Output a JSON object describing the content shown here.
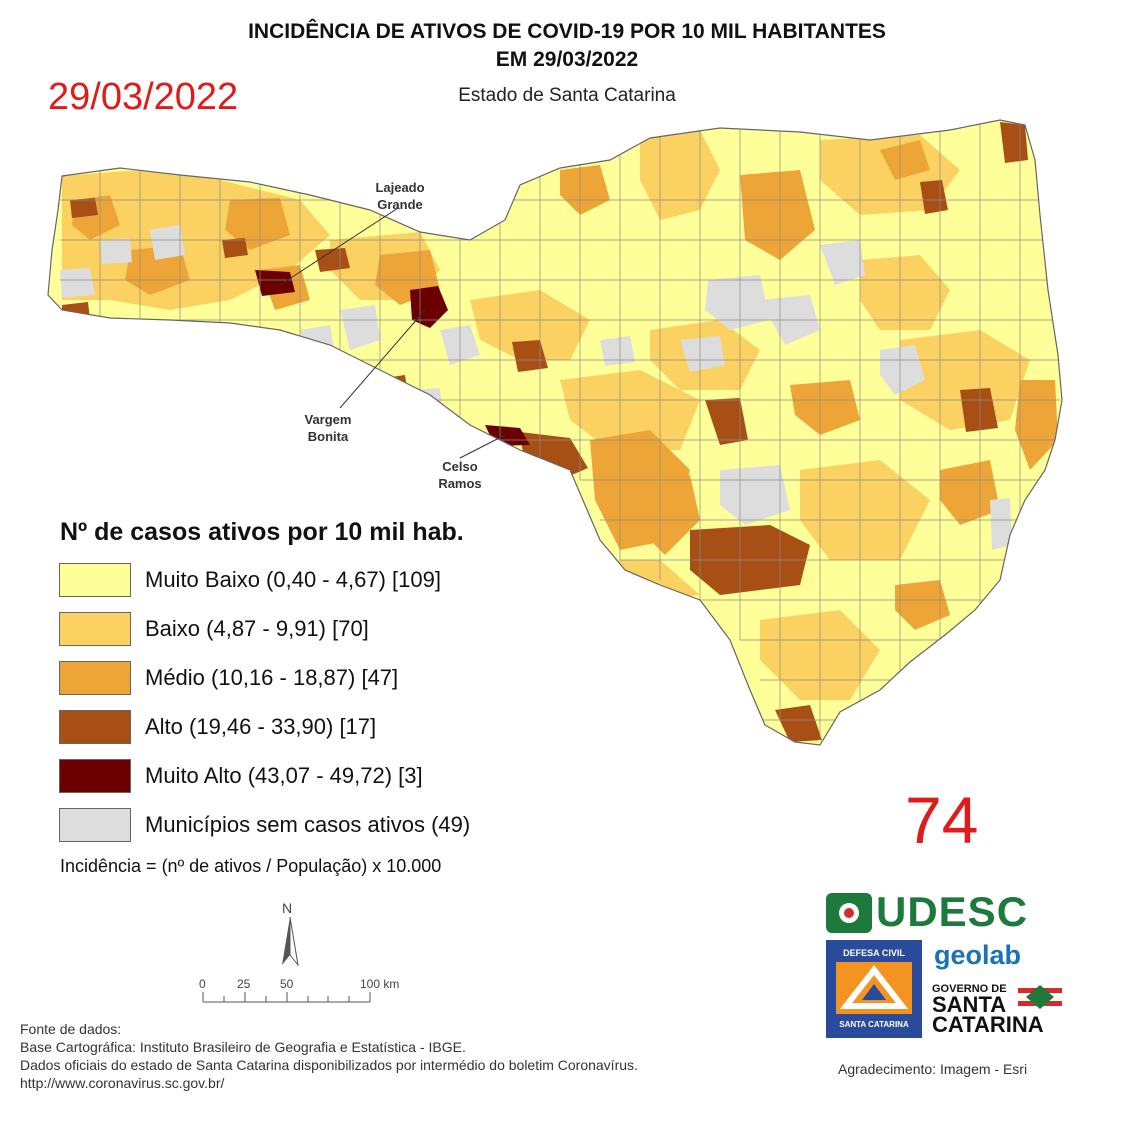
{
  "header": {
    "title_line1": "INCIDÊNCIA DE ATIVOS DE COVID-19 POR 10 MIL HABITANTES",
    "title_line2": "EM 29/03/2022",
    "subtitle": "Estado de Santa Catarina",
    "date_stamp": "29/03/2022"
  },
  "callouts": {
    "lajeado_grande": [
      "Lajeado",
      "Grande"
    ],
    "vargem_bonita": [
      "Vargem",
      "Bonita"
    ],
    "celso_ramos": [
      "Celso",
      "Ramos"
    ]
  },
  "legend": {
    "title": "Nº de casos ativos por 10 mil hab.",
    "classes": [
      {
        "label": "Muito Baixo (0,40 - 4,67) [109]",
        "color": "#ffff99"
      },
      {
        "label": "Baixo (4,87 - 9,91) [70]",
        "color": "#fbd161"
      },
      {
        "label": "Médio (10,16 - 18,87) [47]",
        "color": "#eea537"
      },
      {
        "label": "Alto (19,46 - 33,90) [17]",
        "color": "#a84f16"
      },
      {
        "label": "Muito Alto (43,07 - 49,72) [3]",
        "color": "#6b0000"
      },
      {
        "label": "Municípios sem casos ativos (49)",
        "color": "#dddddd"
      }
    ],
    "formula": "Incidência = (nº de ativos / População) x 10.000"
  },
  "bulletin_number": "74",
  "scale": {
    "north": "N",
    "ticks": [
      "0",
      "25",
      "50",
      "100 km"
    ]
  },
  "logos": {
    "udesc": "UDESC",
    "defesa_civil_top": "DEFESA CIVIL",
    "defesa_civil_bottom": "SANTA CATARINA",
    "geolab": "geolab",
    "governo_line1": "GOVERNO DE",
    "governo_line2": "SANTA",
    "governo_line3": "CATARINA"
  },
  "sources": {
    "line1": "Fonte de dados:",
    "line2": "Base Cartográfica: Instituto Brasileiro de Geografia e Estatística - IBGE.",
    "line3": "Dados oficiais do estado de Santa Catarina disponibilizados por intermédio do boletim Coronavírus.",
    "line4": "http://www.coronavirus.sc.gov.br/",
    "acknowledgement": "Agradecimento: Imagem - Esri"
  },
  "colors": {
    "title_red": "#e01b1b",
    "udesc_green": "#1d7a3c",
    "defesa_blue": "#2a4a9c",
    "defesa_orange": "#f39322",
    "boundary": "#8a8a8a"
  }
}
